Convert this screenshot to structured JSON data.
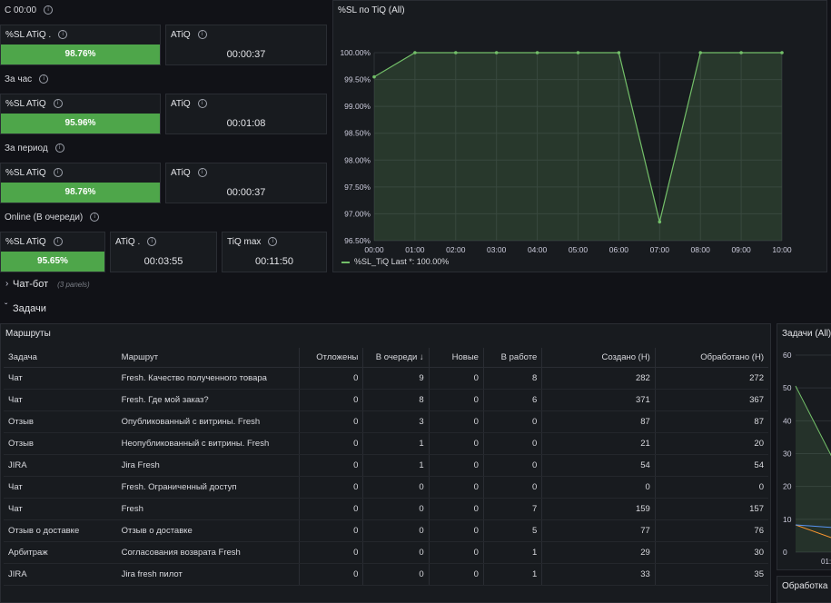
{
  "stats": {
    "s1": {
      "title": "С 00:00",
      "sl_label": "%SL ATiQ .",
      "sl_value": "98.76%",
      "atiq_label": "ATiQ",
      "atiq_value": "00:00:37"
    },
    "s2": {
      "title": "За час",
      "sl_label": "%SL ATiQ",
      "sl_value": "95.96%",
      "atiq_label": "ATiQ",
      "atiq_value": "00:01:08"
    },
    "s3": {
      "title": "За период",
      "sl_label": "%SL ATiQ",
      "sl_value": "98.76%",
      "atiq_label": "ATiQ",
      "atiq_value": "00:00:37"
    },
    "s4": {
      "title": "Online (В очереди)",
      "sl_label": "%SL ATiQ",
      "sl_value": "95.65%",
      "atiq_label": "ATiQ .",
      "atiq_value": "00:03:55",
      "tiq_label": "TiQ max",
      "tiq_value": "00:11:50"
    }
  },
  "chart_panel": {
    "title": "%SL по TiQ (All)",
    "legend": "%SL_TiQ  Last *: 100.00%"
  },
  "chart_data": {
    "type": "area",
    "x": [
      "00:00",
      "01:00",
      "02:00",
      "03:00",
      "04:00",
      "05:00",
      "06:00",
      "07:00",
      "08:00",
      "09:00",
      "10:00"
    ],
    "series": [
      {
        "name": "%SL_TiQ",
        "values": [
          99.55,
          100,
          100,
          100,
          100,
          100,
          100,
          96.85,
          100,
          100,
          100
        ]
      }
    ],
    "ylim": [
      96.5,
      100.0
    ],
    "yticks": [
      "100.00%",
      "99.50%",
      "99.00%",
      "98.50%",
      "98.00%",
      "97.50%",
      "97.00%",
      "96.50%"
    ],
    "color": "#73bf69"
  },
  "rows": {
    "chatbot": "Чат-бот",
    "chatbot_note": "(3 panels)",
    "tasks": "Задачи"
  },
  "table": {
    "title": "Маршруты",
    "headers": [
      "Задача",
      "Маршрут",
      "Отложены",
      "В очереди ↓",
      "Новые",
      "В работе",
      "Создано (Н)",
      "Обработано (Н)"
    ],
    "rows": [
      [
        "Чат",
        "Fresh. Качество полученного товара",
        "0",
        "9",
        "0",
        "8",
        "282",
        "272"
      ],
      [
        "Чат",
        "Fresh. Где мой заказ?",
        "0",
        "8",
        "0",
        "6",
        "371",
        "367"
      ],
      [
        "Отзыв",
        "Опубликованный с витрины. Fresh",
        "0",
        "3",
        "0",
        "0",
        "87",
        "87"
      ],
      [
        "Отзыв",
        "Неопубликованный с витрины. Fresh",
        "0",
        "1",
        "0",
        "0",
        "21",
        "20"
      ],
      [
        "JIRA",
        "Jira Fresh",
        "0",
        "1",
        "0",
        "0",
        "54",
        "54"
      ],
      [
        "Чат",
        "Fresh. Ограниченный доступ",
        "0",
        "0",
        "0",
        "0",
        "0",
        "0"
      ],
      [
        "Чат",
        "Fresh",
        "0",
        "0",
        "0",
        "7",
        "159",
        "157"
      ],
      [
        "Отзыв о доставке",
        "Отзыв о доставке",
        "0",
        "0",
        "0",
        "5",
        "77",
        "76"
      ],
      [
        "Арбитраж",
        "Согласования возврата Fresh",
        "0",
        "0",
        "0",
        "1",
        "29",
        "30"
      ],
      [
        "JIRA",
        "Jira fresh пилот",
        "0",
        "0",
        "0",
        "1",
        "33",
        "35"
      ]
    ]
  },
  "right_panel": {
    "title": "Задачи (All)",
    "yticks": [
      "60",
      "50",
      "40",
      "30",
      "20",
      "10",
      "0"
    ],
    "xtick": "01:",
    "bottom_title": "Обработка"
  }
}
